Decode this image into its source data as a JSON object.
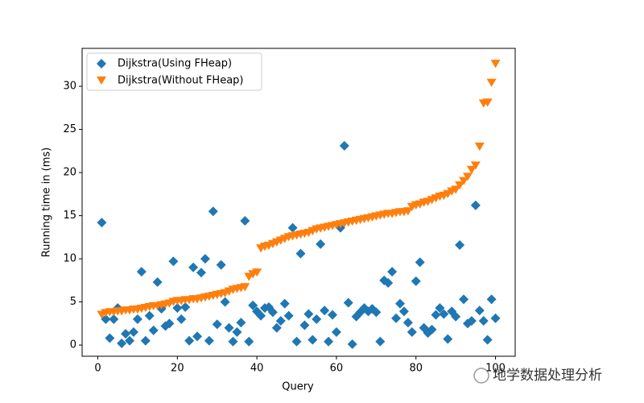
{
  "chart_data": {
    "type": "scatter",
    "x_label": "Query",
    "y_label": "Running time in (ms)",
    "x": [
      1,
      2,
      3,
      4,
      5,
      6,
      7,
      8,
      9,
      10,
      11,
      12,
      13,
      14,
      15,
      16,
      17,
      18,
      19,
      20,
      21,
      22,
      23,
      24,
      25,
      26,
      27,
      28,
      29,
      30,
      31,
      32,
      33,
      34,
      35,
      36,
      37,
      38,
      39,
      40,
      41,
      42,
      43,
      44,
      45,
      46,
      47,
      48,
      49,
      50,
      51,
      52,
      53,
      54,
      55,
      56,
      57,
      58,
      59,
      60,
      61,
      62,
      63,
      64,
      65,
      66,
      67,
      68,
      69,
      70,
      71,
      72,
      73,
      74,
      75,
      76,
      77,
      78,
      79,
      80,
      81,
      82,
      83,
      84,
      85,
      86,
      87,
      88,
      89,
      90,
      91,
      92,
      93,
      94,
      95,
      96,
      97,
      98,
      99,
      100
    ],
    "series": [
      {
        "name": "Dijkstra(Using FHeap)",
        "color": "#1f77b4",
        "marker": "diamond",
        "values": [
          14.2,
          3.0,
          0.8,
          3.0,
          4.3,
          0.2,
          1.3,
          0.5,
          1.5,
          3.0,
          8.5,
          0.5,
          3.4,
          1.7,
          7.3,
          4.2,
          2.2,
          2.5,
          9.7,
          4.3,
          3.0,
          4.4,
          0.5,
          9.0,
          1.0,
          8.4,
          10.0,
          0.5,
          15.5,
          2.4,
          9.3,
          5.0,
          2.0,
          0.4,
          1.5,
          2.6,
          14.4,
          0.4,
          4.6,
          3.9,
          3.4,
          4.3,
          4.4,
          3.8,
          2.0,
          2.8,
          4.8,
          3.4,
          13.6,
          0.4,
          10.6,
          2.3,
          3.6,
          0.6,
          3.0,
          11.7,
          4.0,
          0.4,
          3.5,
          1.5,
          13.6,
          23.1,
          4.9,
          0.1,
          3.3,
          3.8,
          4.3,
          3.9,
          4.2,
          3.8,
          0.4,
          7.5,
          7.2,
          8.5,
          3.1,
          4.8,
          3.9,
          2.6,
          1.5,
          7.4,
          9.6,
          2.0,
          1.4,
          1.8,
          3.5,
          4.3,
          3.6,
          0.7,
          3.9,
          3.3,
          11.6,
          5.3,
          2.5,
          2.8,
          16.2,
          4.0,
          2.8,
          0.6,
          5.3,
          3.1
        ]
      },
      {
        "name": "Dijkstra(Without FHeap)",
        "color": "#ff7f0e",
        "marker": "triangle-down",
        "values": [
          3.5,
          3.7,
          3.8,
          3.8,
          3.9,
          3.9,
          4.0,
          4.0,
          4.1,
          4.1,
          4.2,
          4.3,
          4.4,
          4.5,
          4.5,
          4.6,
          4.7,
          4.8,
          5.0,
          5.1,
          5.1,
          5.2,
          5.2,
          5.3,
          5.3,
          5.4,
          5.5,
          5.6,
          5.7,
          5.8,
          5.9,
          6.0,
          6.2,
          6.4,
          6.5,
          6.6,
          6.7,
          7.9,
          8.2,
          8.4,
          11.2,
          11.4,
          11.5,
          11.7,
          11.9,
          12.1,
          12.3,
          12.5,
          12.6,
          12.7,
          12.8,
          12.9,
          13.0,
          13.2,
          13.4,
          13.5,
          13.6,
          13.7,
          13.8,
          13.9,
          14.0,
          14.1,
          14.2,
          14.3,
          14.4,
          14.5,
          14.6,
          14.7,
          14.8,
          14.9,
          15.0,
          15.1,
          15.2,
          15.2,
          15.3,
          15.4,
          15.4,
          15.5,
          16.0,
          16.2,
          16.3,
          16.5,
          16.6,
          16.8,
          17.0,
          17.2,
          17.3,
          17.5,
          17.8,
          18.0,
          18.5,
          19.0,
          19.5,
          20.3,
          20.8,
          23.0,
          28.0,
          28.1,
          30.4,
          32.6
        ]
      }
    ],
    "xlim": [
      -3.95,
      104.95
    ],
    "xticks": [
      0,
      20,
      40,
      60,
      80,
      100
    ],
    "ylim": [
      -1.3,
      34.4
    ],
    "yticks": [
      0,
      5,
      10,
      15,
      20,
      25,
      30
    ],
    "grid": false,
    "legend": "upper left"
  },
  "watermark": "地学数据处理分析"
}
